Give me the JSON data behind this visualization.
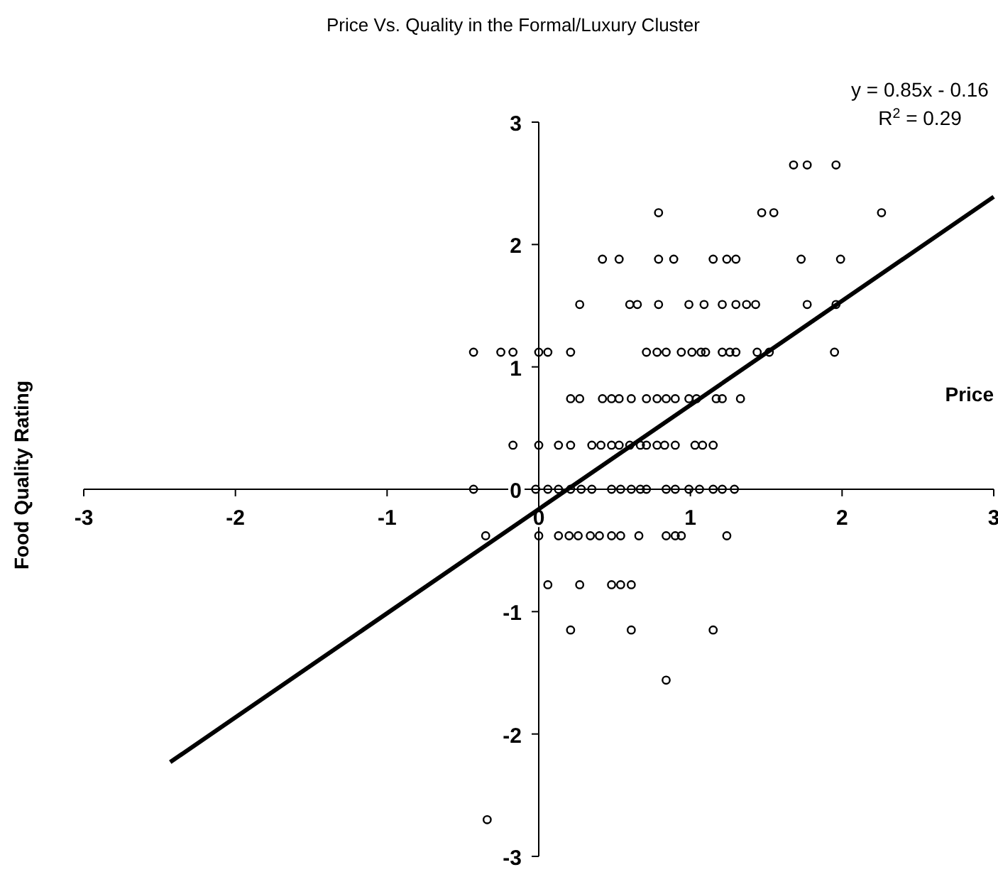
{
  "chart_data": {
    "type": "scatter",
    "title": "Price Vs. Quality in the Formal/Luxury Cluster",
    "xlabel": "Price",
    "ylabel": "Food Quality Rating",
    "annotations": [
      "y = 0.85x - 0.16",
      "R$^{2}$ = 0.29"
    ],
    "xlim": [
      -3,
      3
    ],
    "ylim": [
      -3,
      3
    ],
    "xticks": [
      -3,
      -2,
      -1,
      0,
      1,
      2,
      3
    ],
    "yticks": [
      -3,
      -2,
      -1,
      0,
      1,
      2,
      3
    ],
    "grid": false,
    "marker": "circle",
    "series": [
      {
        "color": "#000000",
        "x": [
          1.68,
          1.77,
          1.96,
          0.79,
          1.47,
          1.55,
          2.26,
          0.42,
          0.53,
          0.79,
          0.89,
          1.15,
          1.24,
          1.3,
          1.73,
          1.99,
          0.27,
          0.6,
          0.65,
          0.79,
          0.99,
          1.09,
          1.21,
          1.3,
          1.37,
          1.43,
          1.77,
          1.96,
          -0.43,
          -0.25,
          -0.17,
          0,
          0.06,
          0.21,
          0.71,
          0.78,
          0.84,
          0.94,
          1.01,
          1.07,
          1.1,
          1.21,
          1.26,
          1.3,
          1.44,
          1.52,
          1.95,
          0.21,
          0.27,
          0.42,
          0.48,
          0.53,
          0.61,
          0.71,
          0.78,
          0.84,
          0.9,
          0.99,
          1.04,
          1.17,
          1.21,
          1.33,
          -0.17,
          0,
          0.13,
          0.21,
          0.35,
          0.41,
          0.48,
          0.53,
          0.6,
          0.67,
          0.71,
          0.78,
          0.83,
          0.9,
          1.03,
          1.08,
          1.15,
          -0.43,
          -0.02,
          0.06,
          0.13,
          0.21,
          0.28,
          0.35,
          0.48,
          0.54,
          0.61,
          0.67,
          0.71,
          0.84,
          0.9,
          0.99,
          1.06,
          1.15,
          1.21,
          1.29,
          -0.35,
          0,
          0.13,
          0.2,
          0.26,
          0.34,
          0.4,
          0.48,
          0.54,
          0.66,
          0.84,
          0.9,
          0.94,
          1.24,
          0.06,
          0.27,
          0.48,
          0.54,
          0.61,
          0.21,
          0.61,
          1.15,
          0.84,
          -0.34
        ],
        "values": [
          2.65,
          2.65,
          2.65,
          2.26,
          2.26,
          2.26,
          2.26,
          1.88,
          1.88,
          1.88,
          1.88,
          1.88,
          1.88,
          1.88,
          1.88,
          1.88,
          1.51,
          1.51,
          1.51,
          1.51,
          1.51,
          1.51,
          1.51,
          1.51,
          1.51,
          1.51,
          1.51,
          1.51,
          1.12,
          1.12,
          1.12,
          1.12,
          1.12,
          1.12,
          1.12,
          1.12,
          1.12,
          1.12,
          1.12,
          1.12,
          1.12,
          1.12,
          1.12,
          1.12,
          1.12,
          1.12,
          1.12,
          0.74,
          0.74,
          0.74,
          0.74,
          0.74,
          0.74,
          0.74,
          0.74,
          0.74,
          0.74,
          0.74,
          0.74,
          0.74,
          0.74,
          0.74,
          0.36,
          0.36,
          0.36,
          0.36,
          0.36,
          0.36,
          0.36,
          0.36,
          0.36,
          0.36,
          0.36,
          0.36,
          0.36,
          0.36,
          0.36,
          0.36,
          0.36,
          0,
          0,
          0,
          0,
          0,
          0,
          0,
          0,
          0,
          0,
          0,
          0,
          0,
          0,
          0,
          0,
          0,
          0,
          0,
          -0.38,
          -0.38,
          -0.38,
          -0.38,
          -0.38,
          -0.38,
          -0.38,
          -0.38,
          -0.38,
          -0.38,
          -0.38,
          -0.38,
          -0.38,
          -0.38,
          -0.78,
          -0.78,
          -0.78,
          -0.78,
          -0.78,
          -1.15,
          -1.15,
          -1.15,
          -1.56,
          -2.7
        ]
      },
      {
        "type": "line",
        "color": "#000000",
        "x": [
          -2.43,
          3
        ],
        "values": [
          -2.23,
          2.39
        ],
        "marker": "none",
        "line_style": "solid"
      }
    ]
  }
}
